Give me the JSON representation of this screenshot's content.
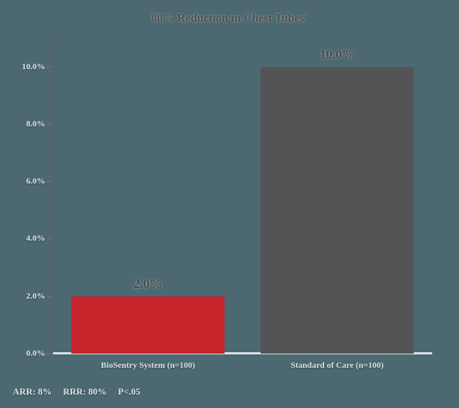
{
  "page": {
    "background_color": "#4c6871"
  },
  "chart_data": {
    "type": "bar",
    "title": "80% Reduction in Chest Tubes",
    "title_superscript": "2",
    "categories": [
      "BioSentry System (n=100)",
      "Standard of Care (n=100)"
    ],
    "values": [
      2.0,
      10.0
    ],
    "value_labels": [
      "2.0%",
      "10.0%"
    ],
    "series_colors": [
      "#c7232b",
      "#545456"
    ],
    "xlabel": "",
    "ylabel": "",
    "ylim": [
      0,
      10
    ],
    "y_ticks": [
      {
        "value": 0,
        "label": "0.0%"
      },
      {
        "value": 2,
        "label": "2.0%"
      },
      {
        "value": 4,
        "label": "4.0%"
      },
      {
        "value": 6,
        "label": "6.0%"
      },
      {
        "value": 8,
        "label": "8.0%"
      },
      {
        "value": 10,
        "label": "10.0%"
      }
    ],
    "grid": false,
    "legend": false,
    "footnote": "ARR: 8%  RRR: 80%  P<.05"
  },
  "footnote": {
    "arr_label": "ARR: 8%",
    "rrr_label": "RRR: 80%",
    "p_label": "P<.05"
  },
  "colors": {
    "background": "#4c6871",
    "axis_line": "#5f5f61",
    "baseline": "#dde6e7",
    "bar_biosentry_red": "#c7232b",
    "bar_standard_gray": "#545456",
    "dark_text": "#4e4e50",
    "light_text": "#dce4e5"
  }
}
